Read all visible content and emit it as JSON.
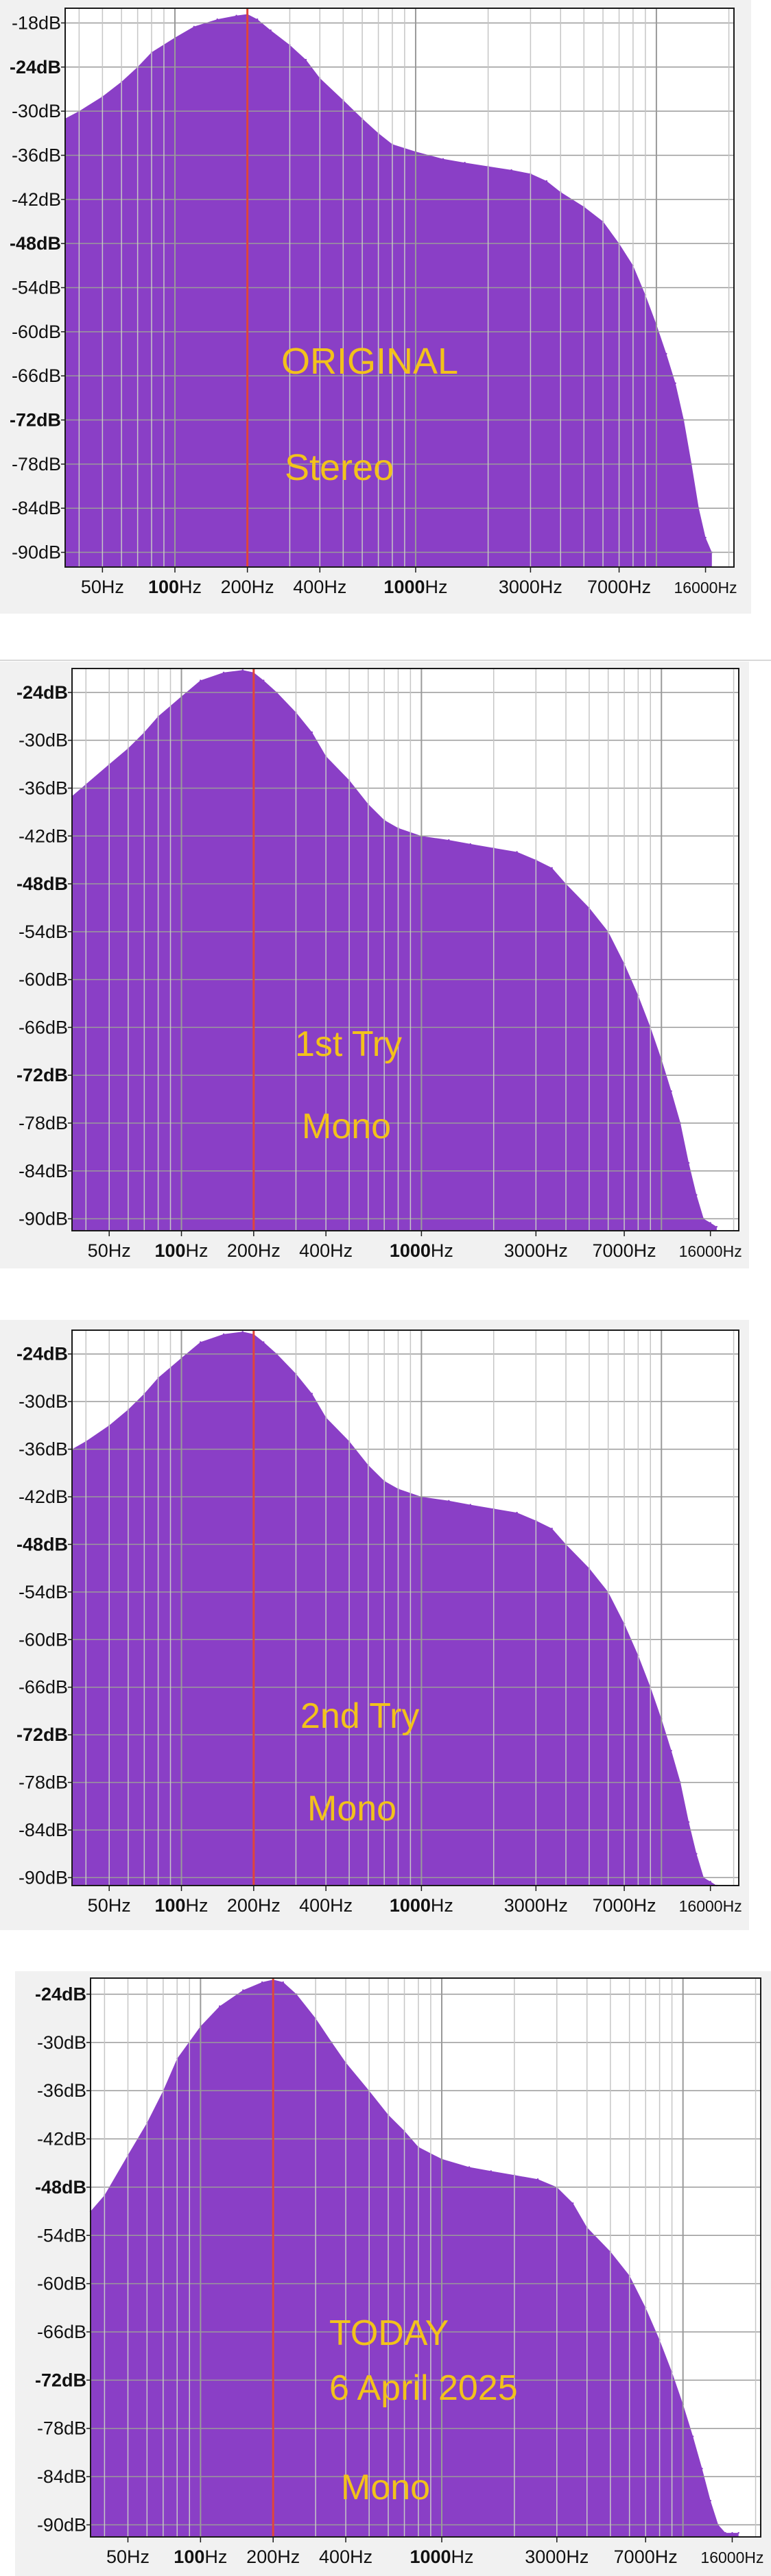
{
  "colors": {
    "fill": "#8a3fc6",
    "marker": "#e0453a",
    "label": "#f2c21b",
    "grid_major": "#9a9a9a",
    "grid_minor": "#c6c6c6",
    "frame": "#1a1a1a",
    "text": "#111111",
    "panel_bg": "#f1f1f1"
  },
  "chart_data": [
    {
      "type": "area",
      "annotation_lines": [
        "ORIGINAL",
        "Stereo"
      ],
      "x_scale": "log",
      "xlim": [
        35,
        21000
      ],
      "ylim": [
        -92,
        -16
      ],
      "y_ticks": [
        -18,
        -24,
        -30,
        -36,
        -42,
        -48,
        -54,
        -60,
        -66,
        -72,
        -78,
        -84,
        -90
      ],
      "y_tick_labels": [
        "-18dB",
        "-24dB",
        "-30dB",
        "-36dB",
        "-42dB",
        "-48dB",
        "-54dB",
        "-60dB",
        "-66dB",
        "-72dB",
        "-78dB",
        "-84dB",
        "-90dB"
      ],
      "x_ticks": [
        50,
        100,
        200,
        400,
        1000,
        3000,
        7000,
        16000
      ],
      "x_tick_labels": [
        "50Hz",
        "100Hz",
        "200Hz",
        "400Hz",
        "1000Hz",
        "3000Hz",
        "7000Hz",
        "16000Hz"
      ],
      "marker_hz": 200,
      "grid": true,
      "x": [
        35,
        40,
        50,
        60,
        70,
        80,
        100,
        120,
        150,
        180,
        200,
        220,
        250,
        300,
        350,
        400,
        500,
        600,
        700,
        800,
        1000,
        1300,
        1600,
        2000,
        2500,
        3000,
        3500,
        4000,
        5000,
        6000,
        7000,
        8000,
        9000,
        10000,
        11000,
        12000,
        13000,
        14000,
        15000,
        16000,
        17000
      ],
      "y": [
        -31,
        -30,
        -28,
        -26,
        -24,
        -22,
        -20,
        -18.5,
        -17.5,
        -17,
        -16.8,
        -17.5,
        -19,
        -21,
        -23,
        -25.5,
        -28.5,
        -31,
        -33,
        -34.5,
        -35.5,
        -36.5,
        -37,
        -37.5,
        -38,
        -38.5,
        -39.5,
        -41,
        -43,
        -45,
        -48,
        -51,
        -55,
        -59,
        -63,
        -67,
        -72,
        -78,
        -84,
        -88,
        -90
      ]
    },
    {
      "type": "area",
      "annotation_lines": [
        "1st Try",
        "Mono"
      ],
      "x_scale": "log",
      "xlim": [
        35,
        21000
      ],
      "ylim": [
        -91.5,
        -21
      ],
      "y_ticks": [
        -24,
        -30,
        -36,
        -42,
        -48,
        -54,
        -60,
        -66,
        -72,
        -78,
        -84,
        -90
      ],
      "y_tick_labels": [
        "-24dB",
        "-30dB",
        "-36dB",
        "-42dB",
        "-48dB",
        "-54dB",
        "-60dB",
        "-66dB",
        "-72dB",
        "-78dB",
        "-84dB",
        "-90dB"
      ],
      "x_ticks": [
        50,
        100,
        200,
        400,
        1000,
        3000,
        7000,
        16000
      ],
      "x_tick_labels": [
        "50Hz",
        "100Hz",
        "200Hz",
        "400Hz",
        "1000Hz",
        "3000Hz",
        "7000Hz",
        "16000Hz"
      ],
      "marker_hz": 200,
      "grid": true,
      "x": [
        35,
        40,
        50,
        60,
        70,
        80,
        100,
        120,
        150,
        180,
        200,
        220,
        250,
        300,
        350,
        400,
        500,
        600,
        700,
        800,
        1000,
        1300,
        1600,
        2000,
        2500,
        3000,
        3500,
        4000,
        5000,
        6000,
        7000,
        8000,
        9000,
        10000,
        11000,
        12000,
        13000,
        14000,
        15000,
        16000,
        17000
      ],
      "y": [
        -37,
        -35.5,
        -33,
        -31,
        -29,
        -27,
        -24.5,
        -22.5,
        -21.5,
        -21.2,
        -21.5,
        -22.5,
        -24,
        -26.5,
        -29,
        -32,
        -35,
        -38,
        -40,
        -41,
        -42,
        -42.5,
        -43,
        -43.5,
        -44,
        -45,
        -46,
        -48,
        -51,
        -54,
        -58,
        -62,
        -66,
        -70,
        -74,
        -78,
        -83,
        -87,
        -90,
        -90.5,
        -91
      ]
    },
    {
      "type": "area",
      "annotation_lines": [
        "2nd Try",
        "Mono"
      ],
      "x_scale": "log",
      "xlim": [
        35,
        21000
      ],
      "ylim": [
        -91,
        -21
      ],
      "y_ticks": [
        -24,
        -30,
        -36,
        -42,
        -48,
        -54,
        -60,
        -66,
        -72,
        -78,
        -84,
        -90
      ],
      "y_tick_labels": [
        "-24dB",
        "-30dB",
        "-36dB",
        "-42dB",
        "-48dB",
        "-54dB",
        "-60dB",
        "-66dB",
        "-72dB",
        "-78dB",
        "-84dB",
        "-90dB"
      ],
      "x_ticks": [
        50,
        100,
        200,
        400,
        1000,
        3000,
        7000,
        16000
      ],
      "x_tick_labels": [
        "50Hz",
        "100Hz",
        "200Hz",
        "400Hz",
        "1000Hz",
        "3000Hz",
        "7000Hz",
        "16000Hz"
      ],
      "marker_hz": 200,
      "grid": true,
      "x": [
        35,
        40,
        50,
        60,
        70,
        80,
        100,
        120,
        150,
        180,
        200,
        220,
        250,
        300,
        350,
        400,
        500,
        600,
        700,
        800,
        1000,
        1300,
        1600,
        2000,
        2500,
        3000,
        3500,
        4000,
        5000,
        6000,
        7000,
        8000,
        9000,
        10000,
        11000,
        12000,
        13000,
        14000,
        15000,
        16000,
        17000
      ],
      "y": [
        -36,
        -35,
        -33,
        -31,
        -29,
        -27,
        -24.5,
        -22.5,
        -21.5,
        -21.2,
        -21.5,
        -22.5,
        -24,
        -26.5,
        -29,
        -32,
        -35,
        -38,
        -40,
        -41,
        -42,
        -42.5,
        -43,
        -43.5,
        -44,
        -45,
        -46,
        -48,
        -51,
        -54,
        -58,
        -62,
        -66,
        -70,
        -74,
        -78,
        -83,
        -87,
        -90,
        -90.5,
        -91
      ]
    },
    {
      "type": "area",
      "annotation_lines": [
        "TODAY",
        "6 April 2025",
        "Mono"
      ],
      "x_scale": "log",
      "xlim": [
        35,
        21000
      ],
      "ylim": [
        -91.5,
        -22
      ],
      "y_ticks": [
        -24,
        -30,
        -36,
        -42,
        -48,
        -54,
        -60,
        -66,
        -72,
        -78,
        -84,
        -90
      ],
      "y_tick_labels": [
        "-24dB",
        "-30dB",
        "-36dB",
        "-42dB",
        "-48dB",
        "-54dB",
        "-60dB",
        "-66dB",
        "-72dB",
        "-78dB",
        "-84dB",
        "-90dB"
      ],
      "x_ticks": [
        50,
        100,
        200,
        400,
        1000,
        3000,
        7000,
        16000
      ],
      "x_tick_labels": [
        "50Hz",
        "100Hz",
        "200Hz",
        "400Hz",
        "1000Hz",
        "3000Hz",
        "7000Hz",
        "16000Hz"
      ],
      "marker_hz": 200,
      "grid": true,
      "x": [
        35,
        40,
        50,
        60,
        70,
        80,
        100,
        120,
        150,
        180,
        200,
        220,
        250,
        300,
        350,
        400,
        500,
        600,
        700,
        800,
        1000,
        1300,
        1600,
        2000,
        2500,
        3000,
        3500,
        4000,
        5000,
        6000,
        7000,
        8000,
        9000,
        10000,
        11000,
        12000,
        13000,
        14000,
        15000,
        16000,
        17000
      ],
      "y": [
        -51,
        -49,
        -44,
        -40,
        -36,
        -32,
        -28,
        -25.5,
        -23.5,
        -22.5,
        -22.2,
        -22.5,
        -24,
        -27,
        -30,
        -32.5,
        -36,
        -39,
        -41,
        -43,
        -44.5,
        -45.5,
        -46,
        -46.5,
        -47,
        -48,
        -50,
        -53,
        -56,
        -59,
        -63,
        -67,
        -71,
        -75,
        -79,
        -83,
        -87,
        -90,
        -91,
        -91,
        -91
      ]
    }
  ]
}
